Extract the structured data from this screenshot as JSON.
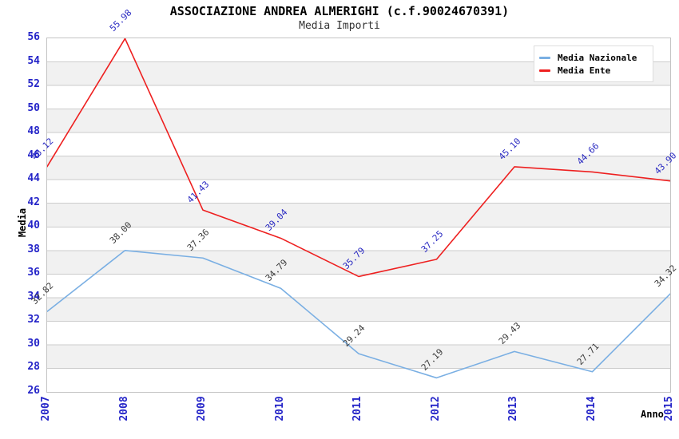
{
  "chart_data": {
    "type": "line",
    "title": "ASSOCIAZIONE ANDREA ALMERIGHI (c.f.90024670391)",
    "subtitle": "Media Importi",
    "xlabel": "Anno",
    "ylabel": "Media",
    "categories": [
      "2007",
      "2008",
      "2009",
      "2010",
      "2011",
      "2012",
      "2013",
      "2014",
      "2015"
    ],
    "ylim": [
      26,
      56
    ],
    "ytick_step": 2,
    "grid": "horizontal gridlines every 2 units with alternating shaded bands",
    "legend_position": "top-right",
    "series": [
      {
        "name": "Media Nazionale",
        "color": "#7aafe3",
        "label_color": "#3c3c3c",
        "values": [
          32.82,
          38.0,
          37.36,
          34.79,
          29.24,
          27.19,
          29.43,
          27.71,
          34.32
        ]
      },
      {
        "name": "Media Ente",
        "color": "#ee2020",
        "label_color": "#2a2ac2",
        "values": [
          45.12,
          55.98,
          41.43,
          39.04,
          35.79,
          37.25,
          45.1,
          44.66,
          43.9
        ]
      }
    ],
    "colors": {
      "tick_label": "#2424c8",
      "grid_line": "#cccccc",
      "band": "#f1f1f1",
      "plot_border": "#c4c4c4",
      "title": "#000000",
      "subtitle": "#333333",
      "background": "#ffffff"
    }
  }
}
